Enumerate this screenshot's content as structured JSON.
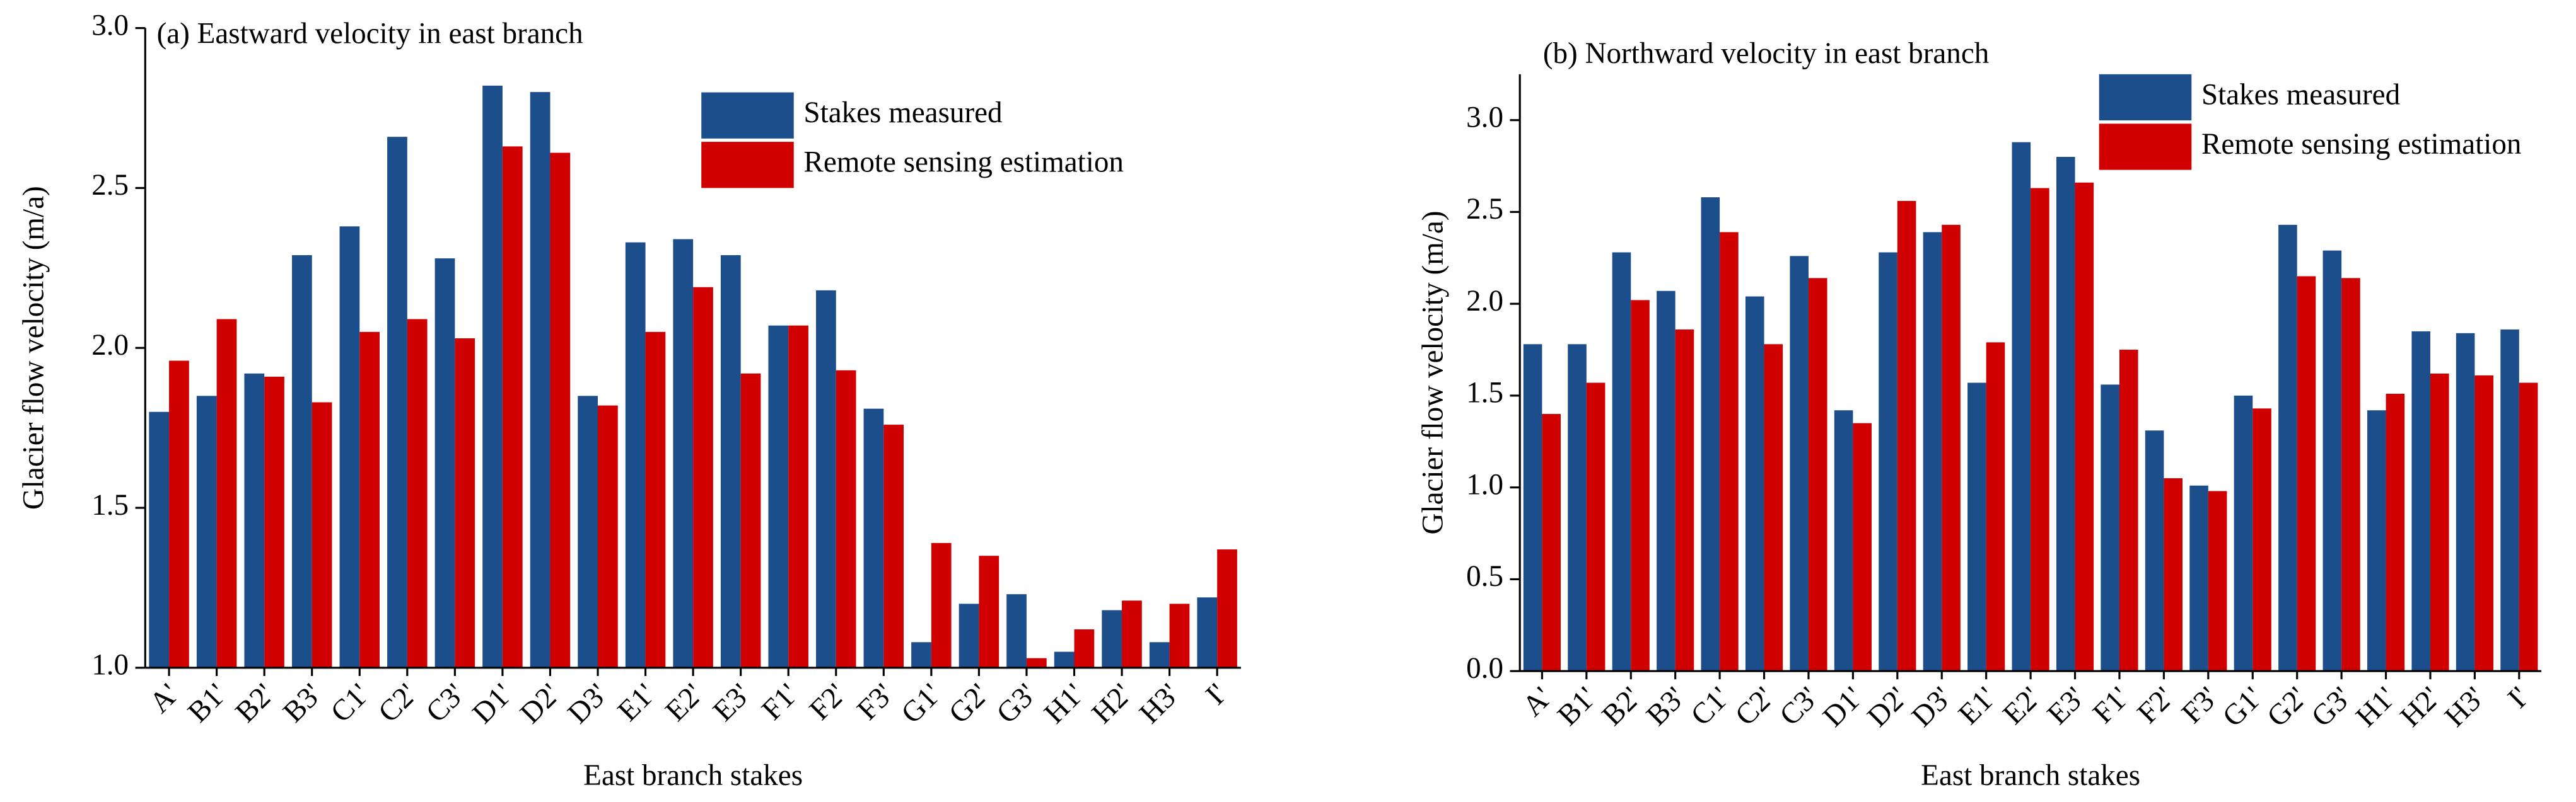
{
  "chart_data": [
    {
      "type": "bar",
      "title": "(a) Eastward velocity in east branch",
      "xlabel": "East branch stakes",
      "ylabel": "Glacier flow velocity (m/a)",
      "categories": [
        "A'",
        "B1'",
        "B2'",
        "B3'",
        "C1'",
        "C2'",
        "C3'",
        "D1'",
        "D2'",
        "D3'",
        "E1'",
        "E2'",
        "E3'",
        "F1'",
        "F2'",
        "F3'",
        "G1'",
        "G2'",
        "G3'",
        "H1'",
        "H2'",
        "H3'",
        "I'"
      ],
      "series": [
        {
          "name": "Stakes measured",
          "color": "#1c4e8c",
          "values": [
            1.8,
            1.85,
            1.92,
            2.29,
            2.38,
            2.66,
            2.28,
            2.82,
            2.8,
            1.85,
            2.33,
            2.34,
            2.29,
            2.07,
            2.18,
            1.81,
            1.08,
            1.2,
            1.23,
            1.05,
            1.18,
            1.08,
            1.22
          ]
        },
        {
          "name": "Remote sensing estimation",
          "color": "#d00000",
          "values": [
            1.96,
            2.09,
            1.91,
            1.83,
            2.05,
            2.09,
            2.03,
            2.63,
            2.61,
            1.82,
            2.05,
            2.19,
            1.92,
            2.07,
            1.93,
            1.76,
            1.39,
            1.35,
            1.03,
            1.12,
            1.21,
            1.2,
            1.37
          ]
        }
      ],
      "ylim": [
        1.0,
        3.0
      ],
      "yticks": [
        {
          "value": 1,
          "label": "1.0"
        },
        1.5,
        {
          "value": 2,
          "label": "2.0"
        },
        2.5,
        {
          "value": 3,
          "label": "3.0"
        }
      ],
      "grid": false,
      "legend": "upper right"
    },
    {
      "type": "bar",
      "title": "(b) Northward velocity in east branch",
      "xlabel": "East branch stakes",
      "ylabel": "Glacier flow velocity (m/a)",
      "categories": [
        "A'",
        "B1'",
        "B2'",
        "B3'",
        "C1'",
        "C2'",
        "C3'",
        "D1'",
        "D2'",
        "D3'",
        "E1'",
        "E2'",
        "E3'",
        "F1'",
        "F2'",
        "F3'",
        "G1'",
        "G2'",
        "G3'",
        "H1'",
        "H2'",
        "H3'",
        "I'"
      ],
      "series": [
        {
          "name": "Stakes measured",
          "color": "#1c4e8c",
          "values": [
            1.78,
            1.78,
            2.28,
            2.07,
            2.58,
            2.04,
            2.26,
            1.42,
            2.28,
            2.39,
            1.57,
            2.88,
            2.8,
            1.56,
            1.31,
            1.01,
            1.5,
            2.43,
            2.29,
            1.42,
            1.85,
            1.84,
            1.86
          ]
        },
        {
          "name": "Remote sensing estimation",
          "color": "#d00000",
          "values": [
            1.4,
            1.57,
            2.02,
            1.86,
            2.39,
            1.78,
            2.14,
            1.35,
            2.56,
            2.43,
            1.79,
            2.63,
            2.66,
            1.75,
            1.05,
            0.98,
            1.43,
            2.15,
            2.14,
            1.51,
            1.62,
            1.61,
            1.57
          ]
        }
      ],
      "ylim": [
        0,
        3.25
      ],
      "yticks": [
        {
          "value": 0,
          "label": "0.0"
        },
        0.5,
        {
          "value": 1,
          "label": "1.0"
        },
        1.5,
        {
          "value": 2,
          "label": "2.0"
        },
        2.5,
        {
          "value": 3,
          "label": "3.0"
        }
      ],
      "grid": false,
      "legend": "upper right"
    }
  ]
}
